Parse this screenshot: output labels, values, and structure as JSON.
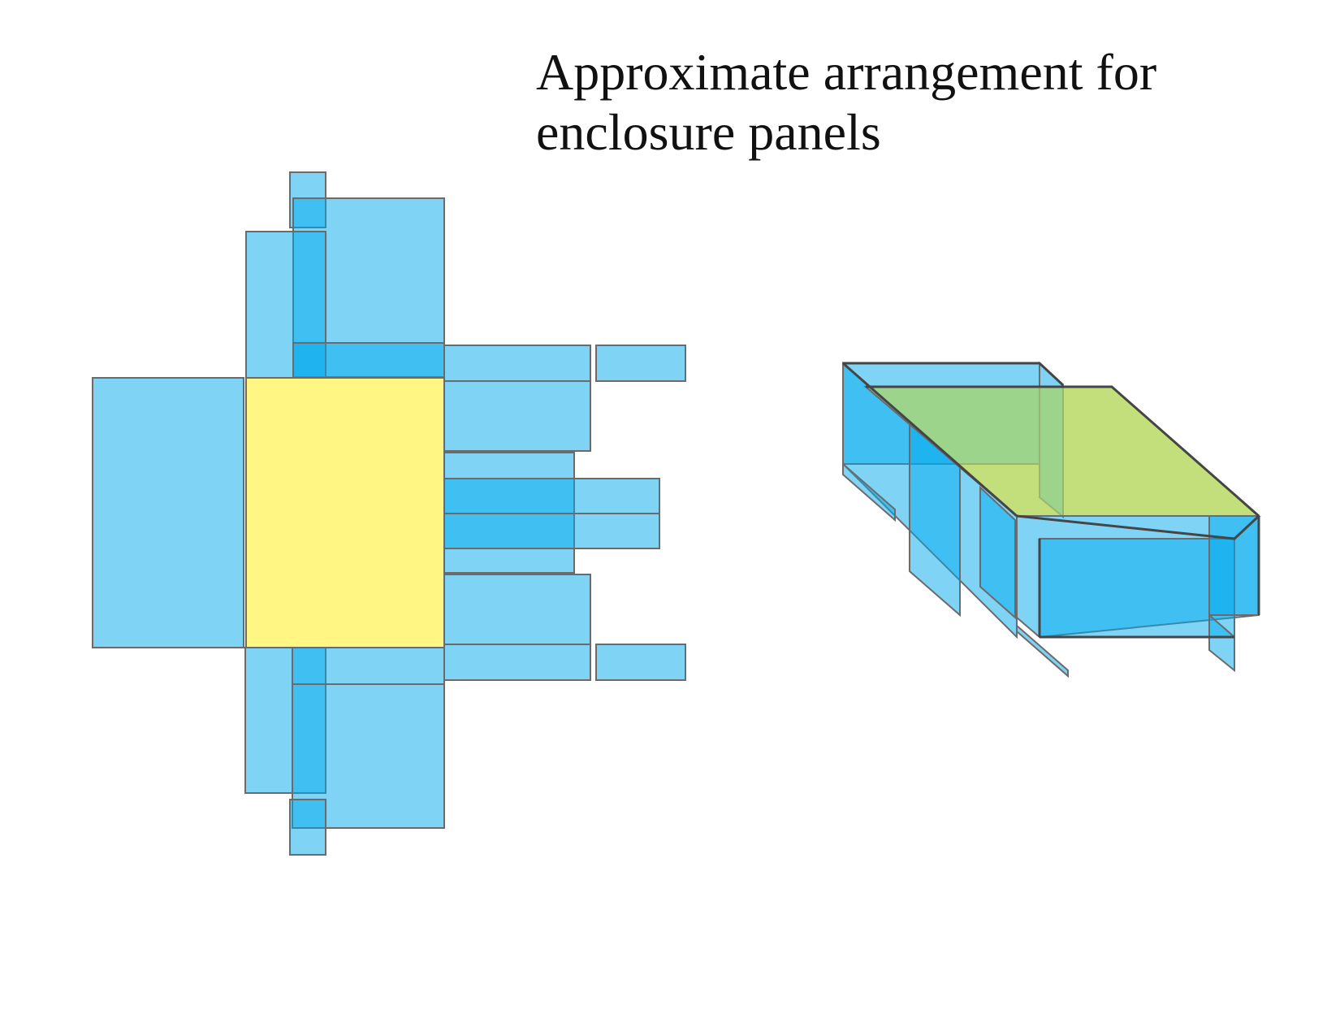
{
  "title": {
    "line1": "Approximate arrangement for",
    "line2": "enclosure panels"
  },
  "colors": {
    "side_panel": "#00aaee",
    "base_panel": "#fff683",
    "top_panel": "#aad678",
    "outline": "#6b6b6b"
  }
}
